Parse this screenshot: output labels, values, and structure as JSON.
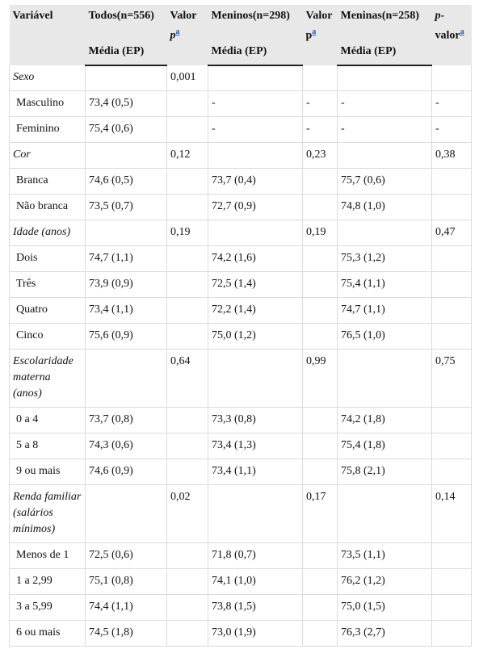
{
  "header": {
    "columns": [
      {
        "text": "Variável"
      },
      {
        "text": "Todos(n=556)",
        "sub": "Média (EP)"
      },
      {
        "text": "Valor",
        "italic": "p",
        "note": "a"
      },
      {
        "text": "Meninos(n=298)",
        "sub": "Média (EP)"
      },
      {
        "text": "Valor",
        "plain": "p",
        "note": "a"
      },
      {
        "text": "Meninas(n=258)",
        "sub": "Média (EP)"
      },
      {
        "italic": "p",
        "text": "-valor",
        "note": "a"
      }
    ]
  },
  "table": {
    "rows": [
      {
        "group": true,
        "cells": [
          "Sexo",
          null,
          "0,001",
          null,
          null,
          null,
          null
        ]
      },
      {
        "cells": [
          "Masculino",
          "73,4 (0,5)",
          null,
          "-",
          "-",
          "-",
          "-"
        ]
      },
      {
        "cells": [
          "Feminino",
          "75,4 (0,6)",
          null,
          "-",
          "-",
          "-",
          "-"
        ]
      },
      {
        "group": true,
        "cells": [
          "Cor",
          null,
          "0,12",
          null,
          "0,23",
          null,
          "0,38"
        ]
      },
      {
        "cells": [
          "Branca",
          "74,6 (0,5)",
          null,
          "73,7 (0,4)",
          null,
          "75,7 (0,6)",
          null
        ]
      },
      {
        "cells": [
          "Não branca",
          "73,5 (0,7)",
          null,
          "72,7 (0,9)",
          null,
          "74,8 (1,0)",
          null
        ]
      },
      {
        "group": true,
        "cells": [
          "Idade (anos)",
          null,
          "0,19",
          null,
          "0,19",
          null,
          "0,47"
        ]
      },
      {
        "cells": [
          "Dois",
          "74,7 (1,1)",
          null,
          "74,2 (1,6)",
          null,
          "75,3 (1,2)",
          null
        ]
      },
      {
        "cells": [
          "Três",
          "73,9 (0,9)",
          null,
          "72,5 (1,4)",
          null,
          "75,4 (1,1)",
          null
        ]
      },
      {
        "cells": [
          "Quatro",
          "73,4 (1,1)",
          null,
          "72,2 (1,4)",
          null,
          "74,7 (1,1)",
          null
        ]
      },
      {
        "cells": [
          "Cinco",
          "75,6 (0,9)",
          null,
          "75,0 (1,2)",
          null,
          "76,5 (1,0)",
          null
        ]
      },
      {
        "group": true,
        "cells": [
          "Escolaridade materna (anos)",
          null,
          "0,64",
          null,
          "0,99",
          null,
          "0,75"
        ]
      },
      {
        "cells": [
          "0 a 4",
          "73,7 (0,8)",
          null,
          "73,3 (0,8)",
          null,
          "74,2 (1,8)",
          null
        ]
      },
      {
        "cells": [
          "5 a 8",
          "74,3 (0,6)",
          null,
          "73,4 (1,3)",
          null,
          "75,4 (1,8)",
          null
        ]
      },
      {
        "cells": [
          "9 ou mais",
          "74,6 (0,9)",
          null,
          "73,4 (1,1)",
          null,
          "75,8 (2,1)",
          null
        ]
      },
      {
        "group": true,
        "cells": [
          "Renda familiar (salários mínimos)",
          null,
          "0,02",
          null,
          "0,17",
          null,
          "0,14"
        ]
      },
      {
        "cells": [
          "Menos de 1",
          "72,5 (0,6)",
          null,
          "71,8 (0,7)",
          null,
          "73,5 (1,1)",
          null
        ]
      },
      {
        "cells": [
          "1 a 2,99",
          "75,1 (0,8)",
          null,
          "74,1 (1,0)",
          null,
          "76,2 (1,2)",
          null
        ]
      },
      {
        "cells": [
          "3 a 5,99",
          "74,4 (1,1)",
          null,
          "73,8 (1,5)",
          null,
          "75,0 (1,5)",
          null
        ]
      },
      {
        "cells": [
          "6 ou mais",
          "74,5 (1,8)",
          null,
          "73,0 (1,9)",
          null,
          "76,3 (2,7)",
          null
        ]
      }
    ]
  }
}
